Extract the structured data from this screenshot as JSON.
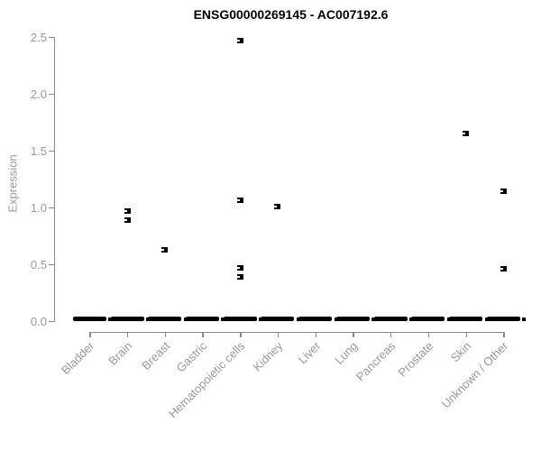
{
  "title": "ENSG00000269145 - AC007192.6",
  "chart_data": {
    "type": "scatter",
    "subtype": "strip-plot-expression-by-tissue",
    "title": "ENSG00000269145 - AC007192.6",
    "xlabel": "",
    "ylabel": "Expression",
    "ylim": [
      0,
      2.5
    ],
    "yticks": [
      "0.0",
      "0.5",
      "1.0",
      "1.5",
      "2.0",
      "2.5"
    ],
    "grid": false,
    "legend": null,
    "categories": [
      "Bladder",
      "Brain",
      "Breast",
      "Gastric",
      "Hematopoietic cells",
      "Kidney",
      "Liver",
      "Lung",
      "Pancreas",
      "Prostate",
      "Skin",
      "Unknown / Other"
    ],
    "dense_cluster_at_zero_for_every_category": true,
    "outlier_points": [
      {
        "category": "Brain",
        "value": 0.97
      },
      {
        "category": "Brain",
        "value": 0.89
      },
      {
        "category": "Breast",
        "value": 0.63
      },
      {
        "category": "Hematopoietic cells",
        "value": 2.47
      },
      {
        "category": "Hematopoietic cells",
        "value": 1.06
      },
      {
        "category": "Hematopoietic cells",
        "value": 0.47
      },
      {
        "category": "Hematopoietic cells",
        "value": 0.39
      },
      {
        "category": "Kidney",
        "value": 1.01
      },
      {
        "category": "Skin",
        "value": 1.65
      },
      {
        "category": "Unknown / Other",
        "value": 1.14
      },
      {
        "category": "Unknown / Other",
        "value": 0.46
      }
    ],
    "colors": {
      "marker": "#000000",
      "axis": "#8a8a8a",
      "tick_label": "#999999",
      "title": "#000000",
      "background": "#ffffff"
    }
  }
}
